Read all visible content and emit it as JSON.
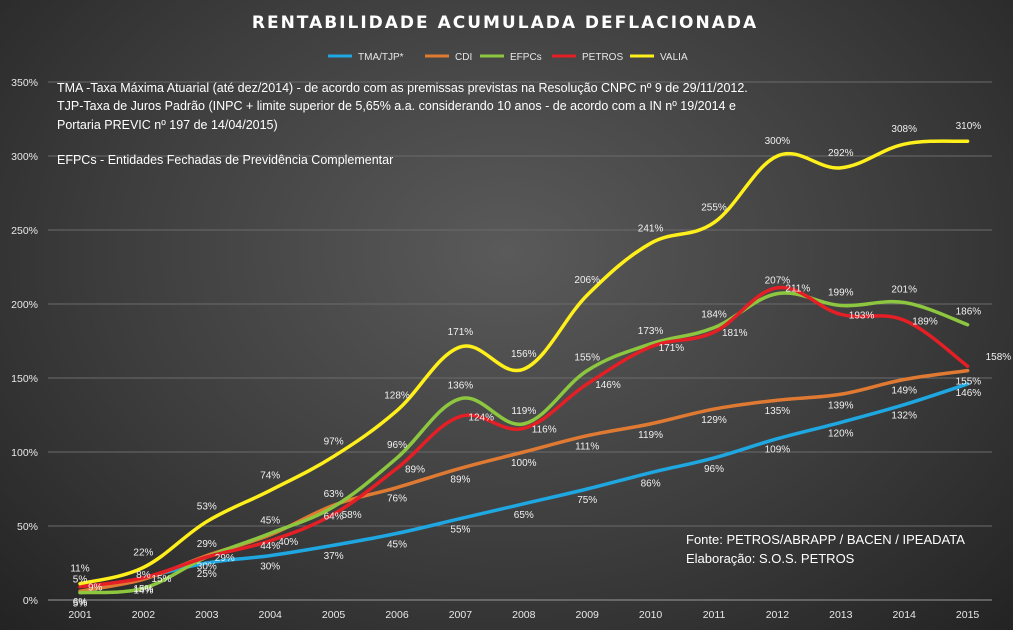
{
  "chart_data": {
    "type": "line",
    "title": "RENTABILIDADE  ACUMULADA  DEFLACIONADA",
    "categories": [
      "2001",
      "2002",
      "2003",
      "2004",
      "2005",
      "2006",
      "2007",
      "2008",
      "2009",
      "2010",
      "2011",
      "2012",
      "2013",
      "2014",
      "2015"
    ],
    "ylim": [
      0,
      350
    ],
    "yticks": [
      0,
      50,
      100,
      150,
      200,
      250,
      300,
      350
    ],
    "ytick_labels": [
      "0%",
      "50%",
      "100%",
      "150%",
      "200%",
      "250%",
      "300%",
      "350%"
    ],
    "grid": true,
    "legend_position": "top",
    "series": [
      {
        "name": "TMA/TJP*",
        "color": "#1ea7e1",
        "values": [
          5,
          15,
          25,
          30,
          37,
          45,
          55,
          65,
          75,
          86,
          96,
          109,
          120,
          132,
          146
        ],
        "labels": [
          "5%",
          "15%",
          "25%",
          "30%",
          "37%",
          "45%",
          "55%",
          "65%",
          "75%",
          "86%",
          "96%",
          "109%",
          "120%",
          "132%",
          "146%"
        ]
      },
      {
        "name": "CDI",
        "color": "#e07a33",
        "values": [
          6,
          14,
          30,
          44,
          64,
          76,
          89,
          100,
          111,
          119,
          129,
          135,
          139,
          149,
          155
        ],
        "labels": [
          "6%",
          "14%",
          "30%",
          "44%",
          "64%",
          "76%",
          "89%",
          "100%",
          "111%",
          "119%",
          "129%",
          "135%",
          "139%",
          "149%",
          "155%"
        ]
      },
      {
        "name": "EFPCs",
        "color": "#8dc63f",
        "values": [
          5,
          8,
          29,
          45,
          63,
          96,
          136,
          119,
          155,
          173,
          184,
          207,
          199,
          201,
          186
        ],
        "labels": [
          "5%",
          "8%",
          "29%",
          "45%",
          "63%",
          "96%",
          "136%",
          "119%",
          "155%",
          "173%",
          "184%",
          "207%",
          "199%",
          "201%",
          "186%"
        ]
      },
      {
        "name": "PETROS",
        "color": "#e41f26",
        "values": [
          9,
          15,
          29,
          40,
          58,
          89,
          124,
          116,
          146,
          171,
          181,
          211,
          193,
          189,
          158
        ],
        "labels": [
          "9%",
          "15%",
          "29%",
          "40%",
          "58%",
          "89%",
          "124%",
          "116%",
          "146%",
          "171%",
          "181%",
          "211%",
          "193%",
          "189%",
          "158%"
        ]
      },
      {
        "name": "VALIA",
        "color": "#ffef1a",
        "values": [
          11,
          22,
          53,
          74,
          97,
          128,
          171,
          156,
          206,
          241,
          255,
          300,
          292,
          308,
          310
        ],
        "labels": [
          "11%",
          "22%",
          "53%",
          "74%",
          "97%",
          "128%",
          "171%",
          "156%",
          "206%",
          "241%",
          "255%",
          "300%",
          "292%",
          "308%",
          "310%"
        ]
      }
    ],
    "notes": [
      "TMA -Taxa Máxima Atuarial (até dez/2014) - de acordo com as premissas previstas na Resolução CNPC nº 9 de 29/11/2012.",
      "TJP-Taxa de Juros Padrão (INPC + limite superior de 5,65% a.a. considerando 10 anos - de acordo com a IN nº 19/2014  e",
      "Portaria PREVIC nº 197  de 14/04/2015)",
      "EFPCs - Entidades Fechadas de Previdência Complementar"
    ],
    "source": [
      "Fonte: PETROS/ABRAPP / BACEN / IPEADATA",
      "Elaboração: S.O.S. PETROS"
    ]
  }
}
